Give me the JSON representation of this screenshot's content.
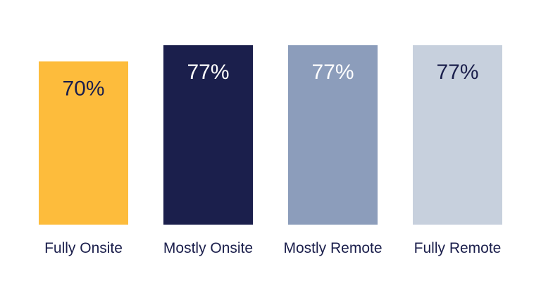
{
  "chart_data": {
    "type": "bar",
    "title": "",
    "xlabel": "",
    "ylabel": "",
    "ylim": [
      0,
      100
    ],
    "grid": false,
    "legend": "none",
    "categories": [
      "Fully Onsite",
      "Mostly Onsite",
      "Mostly Remote",
      "Fully Remote"
    ],
    "values": [
      70,
      77,
      77,
      77
    ],
    "data_labels": [
      "70%",
      "77%",
      "77%",
      "77%"
    ],
    "colors": [
      "#fdbc3c",
      "#1b1f4c",
      "#8c9dbb",
      "#c7d0dd"
    ],
    "label_colors": [
      "#1b1f4c",
      "#ffffff",
      "#ffffff",
      "#1b1f4c"
    ]
  }
}
